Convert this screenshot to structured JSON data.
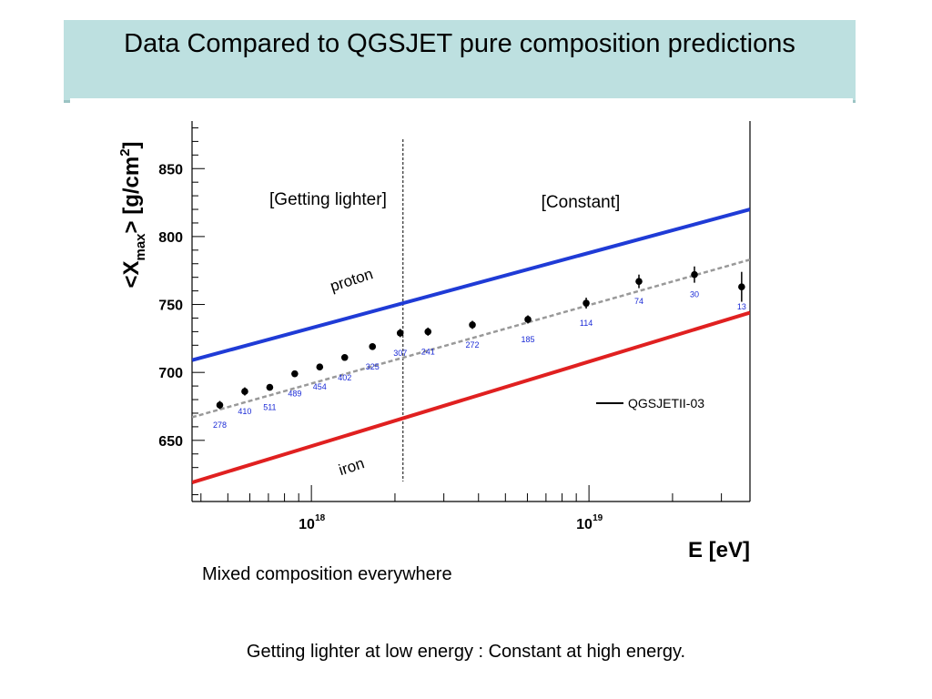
{
  "slide": {
    "title": "Data Compared to QGSJET pure composition predictions",
    "caption_mixed": "Mixed composition everywhere",
    "caption_bottom": "Getting lighter at low energy :  Constant at high energy."
  },
  "chart_data": {
    "type": "line",
    "xlabel": "E [eV]",
    "ylabel_parts": [
      "<X",
      "max",
      "> [g/cm",
      "2",
      "]"
    ],
    "xscale": "log",
    "xlim_log10": [
      17.57,
      19.58
    ],
    "ylim": [
      605,
      885
    ],
    "yticks": [
      650,
      700,
      750,
      800,
      850
    ],
    "xtick_labels": [
      {
        "base": "10",
        "exp": "18",
        "log10": 18
      },
      {
        "base": "10",
        "exp": "19",
        "log10": 19
      }
    ],
    "region_divider_log10": 18.33,
    "region_labels": [
      "[Getting lighter]",
      "[Constant]"
    ],
    "legend": {
      "label": "QGSJETII-03",
      "placement": "right-middle"
    },
    "colors": {
      "proton": "#1f3bd6",
      "iron": "#e02020",
      "fit": "#999999",
      "data": "#000000",
      "counts": "#1a2ad6"
    },
    "series": [
      {
        "name": "proton",
        "x_log10": [
          17.57,
          19.58
        ],
        "y": [
          709,
          820
        ]
      },
      {
        "name": "iron",
        "x_log10": [
          17.57,
          19.58
        ],
        "y": [
          619,
          744
        ]
      },
      {
        "name": "",
        "style": "dashed",
        "x_log10": [
          17.57,
          19.58
        ],
        "y": [
          667,
          783
        ]
      }
    ],
    "data_points": [
      {
        "x_log10": 17.67,
        "y": 676,
        "err": 3,
        "n": "278"
      },
      {
        "x_log10": 17.76,
        "y": 686,
        "err": 3,
        "n": "410"
      },
      {
        "x_log10": 17.85,
        "y": 689,
        "err": 2,
        "n": "511"
      },
      {
        "x_log10": 17.94,
        "y": 699,
        "err": 2,
        "n": "489"
      },
      {
        "x_log10": 18.03,
        "y": 704,
        "err": 2,
        "n": "454"
      },
      {
        "x_log10": 18.12,
        "y": 711,
        "err": 2,
        "n": "402"
      },
      {
        "x_log10": 18.22,
        "y": 719,
        "err": 2,
        "n": "325"
      },
      {
        "x_log10": 18.32,
        "y": 729,
        "err": 3,
        "n": "307"
      },
      {
        "x_log10": 18.42,
        "y": 730,
        "err": 3,
        "n": "241"
      },
      {
        "x_log10": 18.58,
        "y": 735,
        "err": 3,
        "n": "272"
      },
      {
        "x_log10": 18.78,
        "y": 739,
        "err": 3,
        "n": "185"
      },
      {
        "x_log10": 18.99,
        "y": 751,
        "err": 4,
        "n": "114"
      },
      {
        "x_log10": 19.18,
        "y": 767,
        "err": 5,
        "n": "74"
      },
      {
        "x_log10": 19.38,
        "y": 772,
        "err": 6,
        "n": "30"
      },
      {
        "x_log10": 19.55,
        "y": 763,
        "err": 11,
        "n": "13"
      }
    ],
    "series_text": {
      "proton": "proton",
      "iron": "iron"
    }
  }
}
